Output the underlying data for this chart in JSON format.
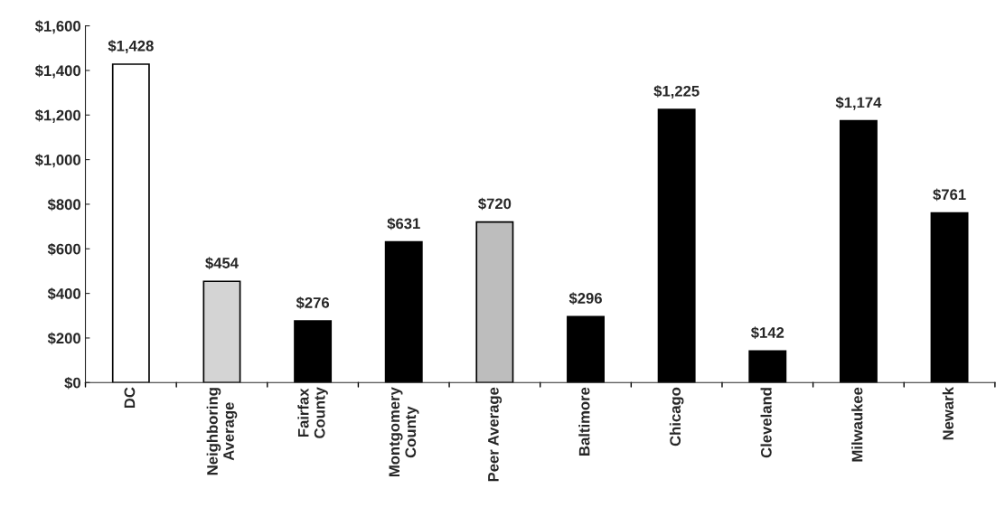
{
  "chart_data": {
    "type": "bar",
    "categories": [
      "DC",
      "Neighboring\nAverage",
      "Fairfax\nCounty",
      "Montgomery\nCounty",
      "Peer Average",
      "Baltimore",
      "Chicago",
      "Cleveland",
      "Milwaukee",
      "Newark"
    ],
    "values": [
      1428,
      454,
      276,
      631,
      720,
      296,
      1225,
      142,
      1174,
      761
    ],
    "colors": [
      "#ffffff",
      "#d4d4d4",
      "#000000",
      "#000000",
      "#bdbdbd",
      "#000000",
      "#000000",
      "#000000",
      "#000000",
      "#000000"
    ],
    "value_labels": [
      "$1,428",
      "$454",
      "$276",
      "$631",
      "$720",
      "$296",
      "$1,225",
      "$142",
      "$1,174",
      "$761"
    ],
    "ylim": [
      0,
      1600
    ],
    "yticks": [
      {
        "value": 0,
        "label": "$0"
      },
      {
        "value": 200,
        "label": "$200"
      },
      {
        "value": 400,
        "label": "$400"
      },
      {
        "value": 600,
        "label": "$600"
      },
      {
        "value": 800,
        "label": "$800"
      },
      {
        "value": 1000,
        "label": "$1,000"
      },
      {
        "value": 1200,
        "label": "$1,200"
      },
      {
        "value": 1400,
        "label": "$1,400"
      },
      {
        "value": 1600,
        "label": "$1,600"
      }
    ],
    "grid": false
  }
}
